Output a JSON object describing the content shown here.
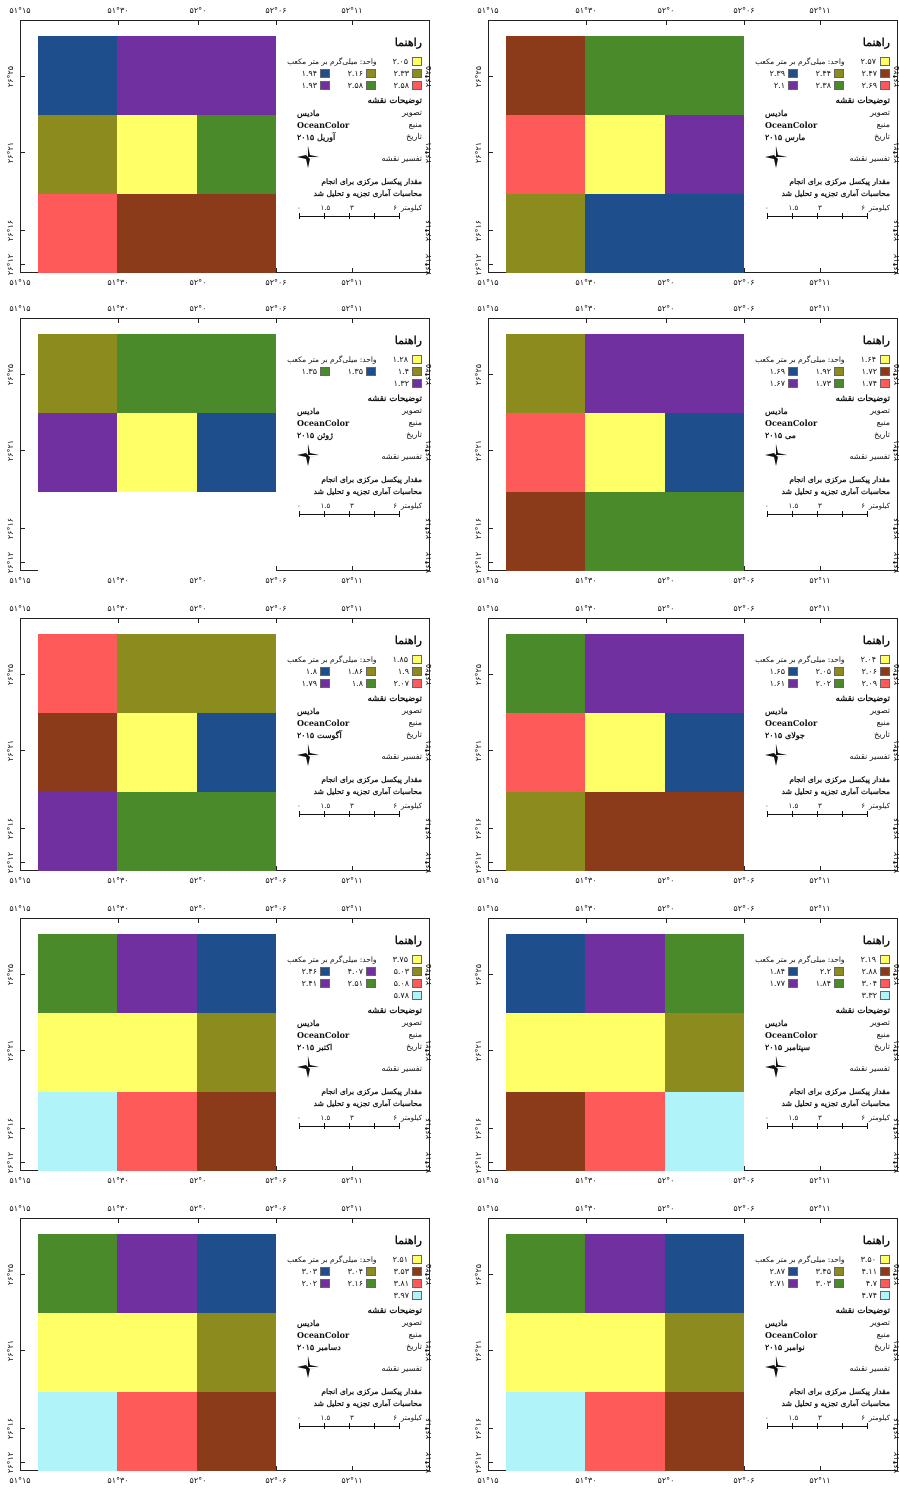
{
  "common": {
    "legend_title": "راهنما",
    "unit": "واحد: میلی‌گرم بر متر مکعب",
    "map_desc_title": "توضیحات نقشه",
    "image_label": "تصویر",
    "image_value": "مادیس",
    "source_label": "منبع",
    "source_value": "OceanColor",
    "date_label": "تاریخ",
    "interp_label": "تفسیر نقشه",
    "note_line1": "مقدار پیکسل مرکزی برای انجام",
    "note_line2": "محاسبات آماری تجزیه و تحلیل شد",
    "scale_unit": "کیلومتر",
    "scale_values": [
      "۰",
      "۱.۵",
      "۳",
      "",
      "۶"
    ],
    "lon_ticks": [
      "۵۱°۱۵",
      "۵۱°۳۰",
      "۵۲°۰",
      "۵۲°۰۶",
      "۵۲°۱۱"
    ],
    "lat_ticks": [
      "۲۶°۲۵",
      "۲۶°۲۱",
      "۲۶°۱۶",
      "۲۶°۱۲"
    ]
  },
  "colors": {
    "blue": "#1f4e8c",
    "purple": "#7030a0",
    "olive": "#8b8b1e",
    "yellow": "#ffff66",
    "green": "#4a8a2a",
    "salmon": "#ff5a5a",
    "brown": "#8b3a1a",
    "cyan": "#b0f4fa",
    "white": "#ffffff"
  },
  "maps": [
    {
      "date": "مارس ۲۰۱۵",
      "cells": [
        [
          "brown",
          "green",
          "green"
        ],
        [
          "salmon",
          "yellow",
          "purple"
        ],
        [
          "olive",
          "blue",
          "blue"
        ]
      ],
      "legend": [
        {
          "color": "yellow",
          "value": "۲.۵۷"
        },
        {
          "color": "brown",
          "value": "۲.۴۷"
        },
        {
          "color": "olive",
          "value": "۲.۴۴"
        },
        {
          "color": "blue",
          "value": "۲.۳۹"
        },
        {
          "color": "salmon",
          "value": "۲.۶۹"
        },
        {
          "color": "green",
          "value": "۲.۳۸"
        },
        {
          "color": "purple",
          "value": "۲.۱"
        }
      ]
    },
    {
      "date": "آوریل ۲۰۱۵",
      "cells": [
        [
          "blue",
          "purple",
          "purple"
        ],
        [
          "olive",
          "yellow",
          "green"
        ],
        [
          "salmon",
          "brown",
          "brown"
        ]
      ],
      "legend": [
        {
          "color": "yellow",
          "value": "۲.۰۵"
        },
        {
          "color": "olive",
          "value": "۲.۳۳"
        },
        {
          "color": "olive",
          "value": "۲.۱۶"
        },
        {
          "color": "blue",
          "value": "۱.۹۴"
        },
        {
          "color": "salmon",
          "value": "۲.۵۸"
        },
        {
          "color": "green",
          "value": "۲.۵۸"
        },
        {
          "color": "purple",
          "value": "۱.۹۳"
        }
      ]
    },
    {
      "date": "می ۲۰۱۵",
      "cells": [
        [
          "olive",
          "purple",
          "purple"
        ],
        [
          "salmon",
          "yellow",
          "blue"
        ],
        [
          "brown",
          "green",
          "green"
        ]
      ],
      "legend": [
        {
          "color": "yellow",
          "value": "۱.۶۴"
        },
        {
          "color": "brown",
          "value": "۱.۷۲"
        },
        {
          "color": "olive",
          "value": "۱.۹۲"
        },
        {
          "color": "blue",
          "value": "۱.۶۹"
        },
        {
          "color": "salmon",
          "value": "۱.۷۴"
        },
        {
          "color": "green",
          "value": "۱.۷۳"
        },
        {
          "color": "purple",
          "value": "۱.۶۷"
        }
      ]
    },
    {
      "date": "ژوئن ۲۰۱۵",
      "cells": [
        [
          "olive",
          "green",
          "green"
        ],
        [
          "purple",
          "yellow",
          "blue"
        ],
        [
          "white",
          "white",
          "white"
        ]
      ],
      "legend": [
        {
          "color": "yellow",
          "value": "۱.۲۸"
        },
        {
          "color": "olive",
          "value": "۱.۴"
        },
        {
          "color": "blue",
          "value": "۱.۳۵"
        },
        {
          "color": "green",
          "value": "۱.۳۵"
        },
        {
          "color": "purple",
          "value": "۱.۳۲"
        }
      ]
    },
    {
      "date": "جولای ۲۰۱۵",
      "cells": [
        [
          "green",
          "purple",
          "purple"
        ],
        [
          "salmon",
          "yellow",
          "blue"
        ],
        [
          "olive",
          "brown",
          "brown"
        ]
      ],
      "legend": [
        {
          "color": "yellow",
          "value": "۲.۰۴"
        },
        {
          "color": "brown",
          "value": "۲.۰۶"
        },
        {
          "color": "olive",
          "value": "۲.۰۵"
        },
        {
          "color": "blue",
          "value": "۱.۶۵"
        },
        {
          "color": "salmon",
          "value": "۲.۰۹"
        },
        {
          "color": "green",
          "value": "۲.۰۲"
        },
        {
          "color": "purple",
          "value": "۱.۶۱"
        }
      ]
    },
    {
      "date": "آگوست ۲۰۱۵",
      "cells": [
        [
          "salmon",
          "olive",
          "olive"
        ],
        [
          "brown",
          "yellow",
          "blue"
        ],
        [
          "purple",
          "green",
          "green"
        ]
      ],
      "legend": [
        {
          "color": "yellow",
          "value": "۱.۸۵"
        },
        {
          "color": "olive",
          "value": "۱.۹"
        },
        {
          "color": "olive",
          "value": "۱.۸۶"
        },
        {
          "color": "blue",
          "value": "۱.۸"
        },
        {
          "color": "salmon",
          "value": "۲.۰۷"
        },
        {
          "color": "green",
          "value": "۱.۸"
        },
        {
          "color": "purple",
          "value": "۱.۷۹"
        }
      ]
    },
    {
      "date": "سپتامبر ۲۰۱۵",
      "cells": [
        [
          "blue",
          "purple",
          "green"
        ],
        [
          "yellow",
          "yellow",
          "olive"
        ],
        [
          "brown",
          "salmon",
          "cyan"
        ]
      ],
      "legend": [
        {
          "color": "yellow",
          "value": "۲.۱۹"
        },
        {
          "color": "brown",
          "value": "۲.۸۸"
        },
        {
          "color": "olive",
          "value": "۲.۲"
        },
        {
          "color": "blue",
          "value": "۱.۸۴"
        },
        {
          "color": "salmon",
          "value": "۳.۰۴"
        },
        {
          "color": "green",
          "value": "۱.۸۴"
        },
        {
          "color": "purple",
          "value": "۱.۷۷"
        },
        {
          "color": "cyan",
          "value": "۳.۳۲"
        }
      ]
    },
    {
      "date": "اکتبر ۲۰۱۵",
      "cells": [
        [
          "green",
          "purple",
          "blue"
        ],
        [
          "yellow",
          "yellow",
          "olive"
        ],
        [
          "cyan",
          "salmon",
          "brown"
        ]
      ],
      "legend": [
        {
          "color": "yellow",
          "value": "۳.۷۵"
        },
        {
          "color": "olive",
          "value": "۵.۰۳"
        },
        {
          "color": "purple",
          "value": "۴.۰۷"
        },
        {
          "color": "blue",
          "value": "۲.۴۶"
        },
        {
          "color": "salmon",
          "value": "۵.۰۸"
        },
        {
          "color": "green",
          "value": "۲.۵۱"
        },
        {
          "color": "purple",
          "value": "۲.۴۱"
        },
        {
          "color": "cyan",
          "value": "۵.۷۸"
        }
      ]
    },
    {
      "date": "نوامبر ۲۰۱۵",
      "cells": [
        [
          "green",
          "purple",
          "blue"
        ],
        [
          "yellow",
          "yellow",
          "olive"
        ],
        [
          "cyan",
          "salmon",
          "brown"
        ]
      ],
      "legend": [
        {
          "color": "yellow",
          "value": "۳.۵۰"
        },
        {
          "color": "brown",
          "value": "۴.۱۱"
        },
        {
          "color": "olive",
          "value": "۳.۴۵"
        },
        {
          "color": "blue",
          "value": "۲.۸۷"
        },
        {
          "color": "salmon",
          "value": "۴.۷"
        },
        {
          "color": "green",
          "value": "۳.۰۳"
        },
        {
          "color": "purple",
          "value": "۲.۷۱"
        },
        {
          "color": "cyan",
          "value": "۴.۷۴"
        }
      ]
    },
    {
      "date": "دسامبر ۲۰۱۵",
      "cells": [
        [
          "green",
          "purple",
          "blue"
        ],
        [
          "yellow",
          "yellow",
          "olive"
        ],
        [
          "cyan",
          "salmon",
          "brown"
        ]
      ],
      "legend": [
        {
          "color": "yellow",
          "value": "۲.۵۱"
        },
        {
          "color": "brown",
          "value": "۳.۵۳"
        },
        {
          "color": "olive",
          "value": "۳.۰۴"
        },
        {
          "color": "blue",
          "value": "۳.۰۳"
        },
        {
          "color": "salmon",
          "value": "۳.۸۱"
        },
        {
          "color": "green",
          "value": "۲.۱۶"
        },
        {
          "color": "purple",
          "value": "۲.۰۲"
        },
        {
          "color": "cyan",
          "value": "۳.۹۷"
        }
      ]
    }
  ]
}
